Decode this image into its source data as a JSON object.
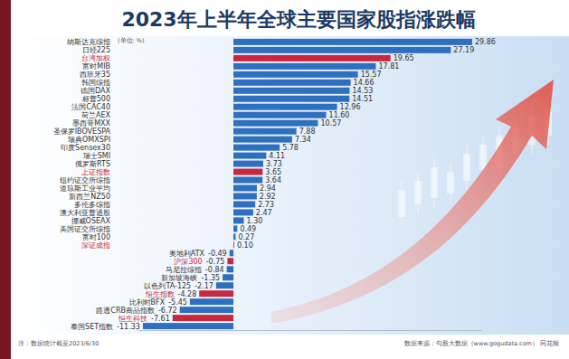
{
  "chart_data": {
    "type": "bar",
    "orientation": "horizontal",
    "title": "2023年上半年全球主要国家股指涨跌幅",
    "annotations": [
      "(单位: %)",
      "注：数据统计截至2023/6/30",
      "数据来源：勾股大数据（www.gogudata.com） 同花顺"
    ],
    "categories": [
      "纳斯达克综指",
      "日经225",
      "台湾加权",
      "富时MIB",
      "西班牙35",
      "韩国综指",
      "德国DAX",
      "标普500",
      "法国CAC40",
      "荷兰AEX",
      "墨西哥MXX",
      "圣保罗IBOVESPA",
      "瑞典OMXSPI",
      "印度Sensex30",
      "瑞士SMI",
      "俄罗斯RTS",
      "上证指数",
      "纽约证交所综指",
      "道琼斯工业平均",
      "新西兰NZ50",
      "多伦多综指",
      "澳大利亚普通股",
      "挪威OSEAX",
      "美国证交所综指",
      "富时100",
      "深证成指",
      "奥地利ATX",
      "沪深300",
      "马尼拉综指",
      "新加坡海峡",
      "以色列TA-125",
      "恒生指数",
      "比利时BFX",
      "路透CRB商品指数",
      "恒生科技",
      "泰国SET指数"
    ],
    "values": [
      29.86,
      27.19,
      19.65,
      17.81,
      15.57,
      14.66,
      14.53,
      14.51,
      12.96,
      11.6,
      10.57,
      7.88,
      7.34,
      5.78,
      4.11,
      3.73,
      3.65,
      3.64,
      2.94,
      2.92,
      2.73,
      2.47,
      1.3,
      0.49,
      0.27,
      0.1,
      -0.49,
      -0.75,
      -0.84,
      -1.35,
      -2.17,
      -4.28,
      -5.45,
      -6.72,
      -7.61,
      -11.33
    ],
    "value_labels": [
      "29.86",
      "27.19",
      "19.65",
      "17.81",
      "15.57",
      "14.66",
      "14.53",
      "14.51",
      "12.96",
      "11.60",
      "10.57",
      "7.88",
      "7.34",
      "5.78",
      "4.11",
      "3.73",
      "3.65",
      "3.64",
      "2.94",
      "2.92",
      "2.73",
      "2.47",
      "1.30",
      "0.49",
      "0.27",
      "0.10",
      "-0.49",
      "-0.75",
      "-0.84",
      "-1.35",
      "-2.17",
      "-4.28",
      "-5.45",
      "-6.72",
      "-7.61",
      "-11.33"
    ],
    "colors": [
      "#2f6fbf",
      "#2f6fbf",
      "#c8283f",
      "#2f6fbf",
      "#2f6fbf",
      "#2f6fbf",
      "#2f6fbf",
      "#2f6fbf",
      "#2f6fbf",
      "#2f6fbf",
      "#2f6fbf",
      "#2f6fbf",
      "#2f6fbf",
      "#2f6fbf",
      "#2f6fbf",
      "#2f6fbf",
      "#c8283f",
      "#2f6fbf",
      "#2f6fbf",
      "#2f6fbf",
      "#2f6fbf",
      "#2f6fbf",
      "#2f6fbf",
      "#2f6fbf",
      "#2f6fbf",
      "#c8283f",
      "#2f6fbf",
      "#c8283f",
      "#2f6fbf",
      "#2f6fbf",
      "#2f6fbf",
      "#c8283f",
      "#2f6fbf",
      "#2f6fbf",
      "#c8283f",
      "#2f6fbf"
    ],
    "xlim": [
      -12,
      31
    ],
    "data_labels": true,
    "tick_labels": false,
    "grid": false
  }
}
